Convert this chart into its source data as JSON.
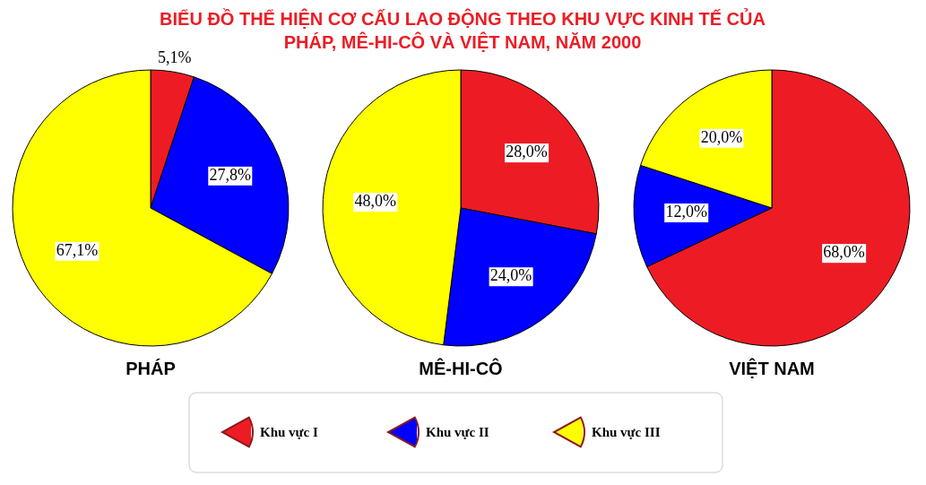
{
  "chart_data": [
    {
      "type": "pie",
      "title": "BIỂU ĐỒ THỂ HIỆN CƠ CẤU LAO ĐỘNG THEO KHU VỰC KINH TẾ CỦA\nPHÁP, MÊ-HI-CÔ VÀ VIỆT NAM, NĂM 2000",
      "xlabel": "PHÁP",
      "categories": [
        "Khu vực I",
        "Khu vực II",
        "Khu vực III"
      ],
      "values": [
        5.1,
        27.8,
        67.1
      ],
      "value_labels": [
        "5,1%",
        "27,8%",
        "67,1%"
      ],
      "colors": [
        "#ed1c24",
        "#0000ff",
        "#ffff00"
      ],
      "legend": "bottom"
    },
    {
      "type": "pie",
      "xlabel": "MÊ-HI-CÔ",
      "categories": [
        null,
        null,
        null
      ],
      "values": [
        28,
        24,
        48
      ],
      "value_labels": [
        "28,0%",
        "24,0%",
        "48,0%"
      ],
      "colors": [
        "#ed1c24",
        "#0000ff",
        "#ffff00"
      ]
    },
    {
      "type": "pie",
      "xlabel": "VIỆT NAM",
      "categories": [
        null,
        null,
        null
      ],
      "values": [
        68,
        12,
        20
      ],
      "value_labels": [
        "68,0%",
        "12,0%",
        "20,0%"
      ],
      "colors": [
        "#ed1c24",
        "#0000ff",
        "#ffff00"
      ]
    }
  ]
}
